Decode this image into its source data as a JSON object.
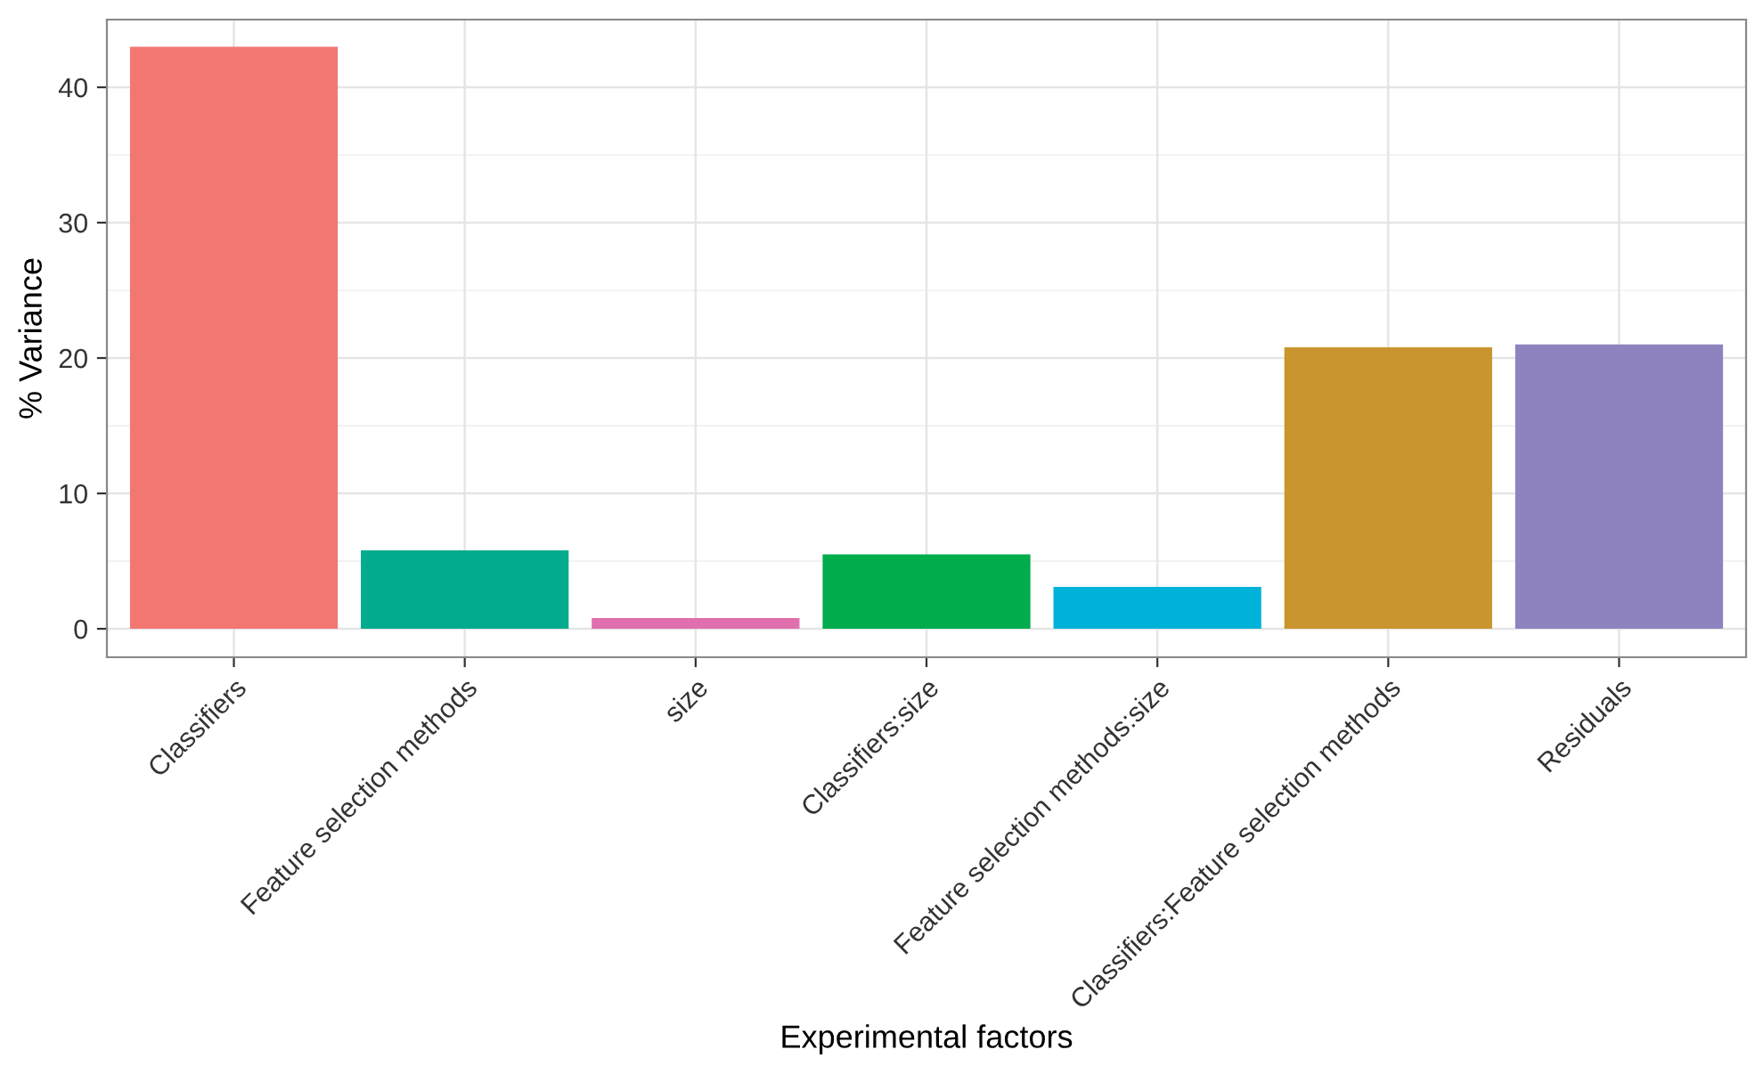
{
  "chart_data": {
    "type": "bar",
    "xlabel": "Experimental factors",
    "ylabel": "% Variance",
    "categories": [
      "Classifiers",
      "Feature selection methods",
      "size",
      "Classifiers:size",
      "Feature selection methods:size",
      "Classifiers:Feature selection methods",
      "Residuals"
    ],
    "values": [
      43.0,
      5.8,
      0.8,
      5.5,
      3.1,
      20.8,
      21.0
    ],
    "colors": [
      "#f27772",
      "#00ab8e",
      "#e06fae",
      "#00ac4c",
      "#00b2d8",
      "#c8952e",
      "#8f83bf"
    ],
    "ylim": [
      -2.1,
      45.0
    ],
    "yticks": [
      0,
      10,
      20,
      30,
      40
    ],
    "grid": true,
    "legend": false
  }
}
